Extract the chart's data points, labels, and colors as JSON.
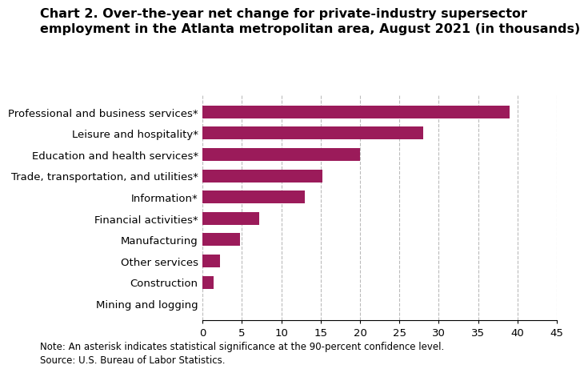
{
  "title_line1": "Chart 2. Over-the-year net change for private-industry supersector",
  "title_line2": "employment in the Atlanta metropolitan area, August 2021 (in thousands)",
  "categories": [
    "Mining and logging",
    "Construction",
    "Other services",
    "Manufacturing",
    "Financial activities*",
    "Information*",
    "Trade, transportation, and utilities*",
    "Education and health services*",
    "Leisure and hospitality*",
    "Professional and business services*"
  ],
  "values": [
    0.0,
    1.4,
    2.2,
    4.8,
    7.2,
    13.0,
    15.2,
    20.0,
    28.0,
    39.0
  ],
  "bar_color": "#9B1B5A",
  "xlim": [
    0,
    45
  ],
  "xticks": [
    0,
    5,
    10,
    15,
    20,
    25,
    30,
    35,
    40,
    45
  ],
  "note": "Note: An asterisk indicates statistical significance at the 90-percent confidence level.",
  "source": "Source: U.S. Bureau of Labor Statistics.",
  "title_fontsize": 11.5,
  "tick_fontsize": 9.5,
  "note_fontsize": 8.5,
  "bar_height": 0.6,
  "grid_color": "#bbbbbb",
  "background_color": "#ffffff"
}
